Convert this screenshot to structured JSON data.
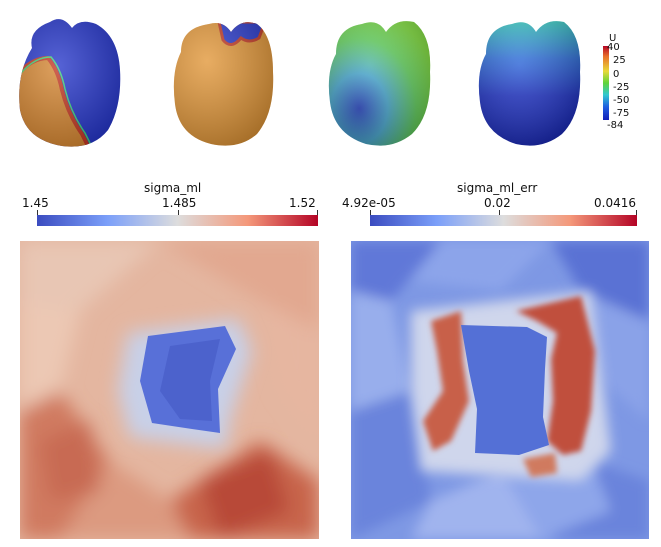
{
  "heart_panels": {
    "legend": {
      "title": "U",
      "ticks": [
        "40",
        "25",
        "0",
        "-25",
        "-50",
        "-75",
        "-84"
      ]
    }
  },
  "colorbar_left": {
    "title": "sigma_ml",
    "min": "1.45",
    "mid": "1.485",
    "max": "1.52"
  },
  "colorbar_right": {
    "title": "sigma_ml_err",
    "min": "4.92e-05",
    "mid": "0.02",
    "max": "0.0416"
  },
  "colors": {
    "cool": "#3b4cc0",
    "neutral": "#dddddd",
    "warm": "#b40426"
  }
}
